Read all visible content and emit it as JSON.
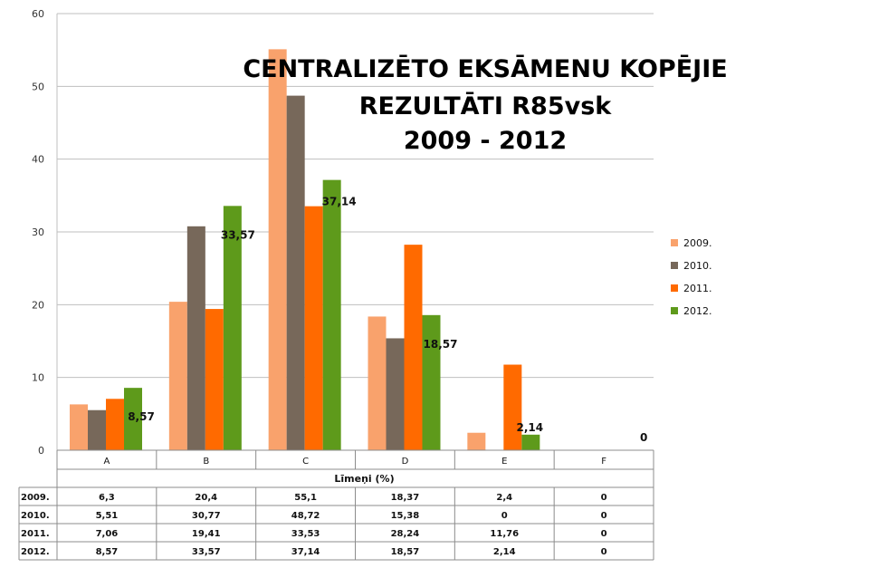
{
  "chart_data": {
    "type": "bar",
    "title_lines": [
      "CENTRALIZĒTO EKSĀMENU KOPĒJIE",
      "REZULTĀTI R85vsk",
      "2009 - 2012"
    ],
    "xlabel": "Līmeņi (%)",
    "ylabel": "",
    "ylim": [
      0,
      60
    ],
    "yticks": [
      "0",
      "10",
      "20",
      "30",
      "40",
      "50",
      "60"
    ],
    "categories": [
      "A",
      "B",
      "C",
      "D",
      "E",
      "F"
    ],
    "grid": true,
    "legend_position": "right",
    "series": [
      {
        "name": "2009.",
        "color": "#F9A26C",
        "values": [
          6.3,
          20.4,
          55.1,
          18.37,
          2.4,
          0
        ],
        "table": [
          "6,3",
          "20,4",
          "55,1",
          "18,37",
          "2,4",
          "0"
        ]
      },
      {
        "name": "2010.",
        "color": "#77685A",
        "values": [
          5.51,
          30.77,
          48.72,
          15.38,
          0,
          0
        ],
        "table": [
          "5,51",
          "30,77",
          "48,72",
          "15,38",
          "0",
          "0"
        ]
      },
      {
        "name": "2011.",
        "color": "#FF6A00",
        "values": [
          7.06,
          19.41,
          33.53,
          28.24,
          11.76,
          0
        ],
        "table": [
          "7,06",
          "19,41",
          "33,53",
          "28,24",
          "11,76",
          "0"
        ]
      },
      {
        "name": "2012.",
        "color": "#5E9A1B",
        "values": [
          8.57,
          33.57,
          37.14,
          18.57,
          2.14,
          0
        ],
        "table": [
          "8,57",
          "33,57",
          "37,14",
          "18,57",
          "2,14",
          "0"
        ]
      }
    ],
    "data_labels": {
      "series": "2012.",
      "values": [
        "8,57",
        "33,57",
        "37,14",
        "18,57",
        "2,14",
        "0"
      ]
    }
  }
}
